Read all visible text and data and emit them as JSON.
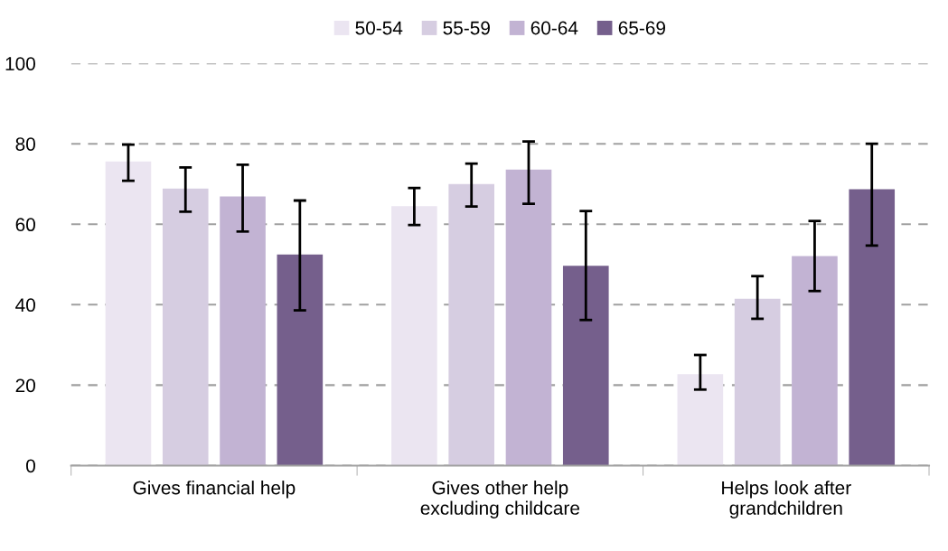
{
  "chart_data": {
    "type": "bar",
    "categories": [
      "Gives financial help",
      "Gives other help\nexcluding childcare",
      "Helps look after\ngrandchildren"
    ],
    "series": [
      {
        "name": "50-54",
        "color": "#ebe5f1",
        "values": [
          75.6,
          64.5,
          22.7
        ],
        "errors": [
          [
            70.8,
            79.8
          ],
          [
            59.8,
            69.0
          ],
          [
            18.9,
            27.5
          ]
        ]
      },
      {
        "name": "55-59",
        "color": "#d6cde1",
        "values": [
          68.9,
          70.0,
          41.5
        ],
        "errors": [
          [
            63.1,
            74.1
          ],
          [
            64.4,
            75.1
          ],
          [
            36.5,
            47.1
          ]
        ]
      },
      {
        "name": "60-64",
        "color": "#c2b3d3",
        "values": [
          66.9,
          73.6,
          52.1
        ],
        "errors": [
          [
            58.2,
            74.8
          ],
          [
            65.1,
            80.6
          ],
          [
            43.4,
            60.8
          ]
        ]
      },
      {
        "name": "65-69",
        "color": "#755f8c",
        "values": [
          52.5,
          49.7,
          68.7
        ],
        "errors": [
          [
            38.6,
            65.9
          ],
          [
            36.2,
            63.3
          ],
          [
            54.7,
            80.0
          ]
        ]
      }
    ],
    "ylim": [
      0,
      100
    ],
    "yticks": [
      0,
      20,
      40,
      60,
      80,
      100
    ],
    "grid": "y",
    "legend": "top"
  }
}
